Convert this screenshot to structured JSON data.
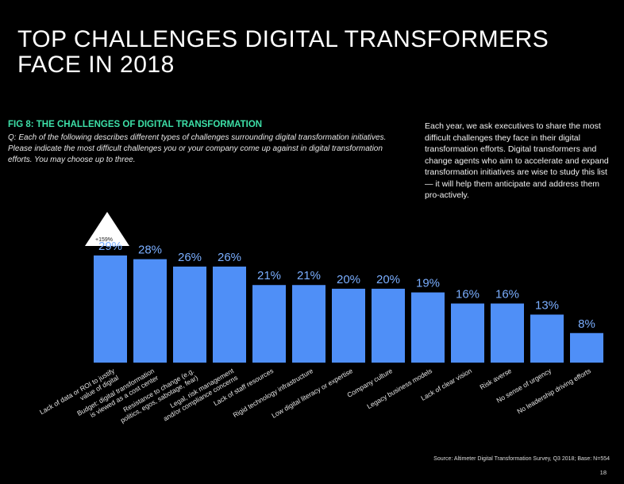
{
  "header": {
    "title_line1": "TOP CHALLENGES DIGITAL TRANSFORMERS",
    "title_line2": "FACE IN 2018"
  },
  "figure": {
    "label": "FIG 8: THE CHALLENGES OF DIGITAL TRANSFORMATION",
    "question": "Q: Each of the following describes different types of challenges surrounding digital transformation initiatives. Please indicate the most difficult challenges you or your company come up against in digital transformation efforts. You may choose up to three."
  },
  "sidebar": {
    "text": "Each year, we ask executives to share the most difficult challenges they face in their digital transformation efforts. Digital transformers and change agents who aim to accelerate and expand transformation initiatives are wise to study this list — it will help them anticipate and address them pro-actively."
  },
  "badge": {
    "text": "+159%"
  },
  "footer": {
    "source": "Source: Altimeter Digital Transformation Survey, Q3 2018; Base: N=554",
    "page": "18"
  },
  "colors": {
    "bar": "#4f8ff7",
    "label": "#7aaeff",
    "accent": "#3de0a8",
    "background": "#000000"
  },
  "chart_data": {
    "type": "bar",
    "categories": [
      [
        "Lack of data or ROI to justify",
        "value of digital"
      ],
      [
        "Budget: digital transformation",
        "is viewed as a cost center"
      ],
      [
        "Resistance to change (e.g.",
        "politics, egos, sabotage, fear)"
      ],
      [
        "Legal, risk management",
        "and/or compliance concerns"
      ],
      [
        "Lack of staff resources"
      ],
      [
        "Rigid technology infrastructure"
      ],
      [
        "Low digital literacy or expertise"
      ],
      [
        "Company culture"
      ],
      [
        "Legacy business models"
      ],
      [
        "Lack of clear vision"
      ],
      [
        "Risk averse"
      ],
      [
        "No sense of urgency"
      ],
      [
        "No leadership driving efforts"
      ]
    ],
    "values": [
      29,
      28,
      26,
      26,
      21,
      21,
      20,
      20,
      19,
      16,
      16,
      13,
      8
    ],
    "value_labels": [
      "29%",
      "28%",
      "26%",
      "26%",
      "21%",
      "21%",
      "20%",
      "20%",
      "19%",
      "16%",
      "16%",
      "13%",
      "8%"
    ],
    "unit": "%",
    "ylim": [
      0,
      29
    ],
    "grid": false,
    "legend": "none"
  }
}
